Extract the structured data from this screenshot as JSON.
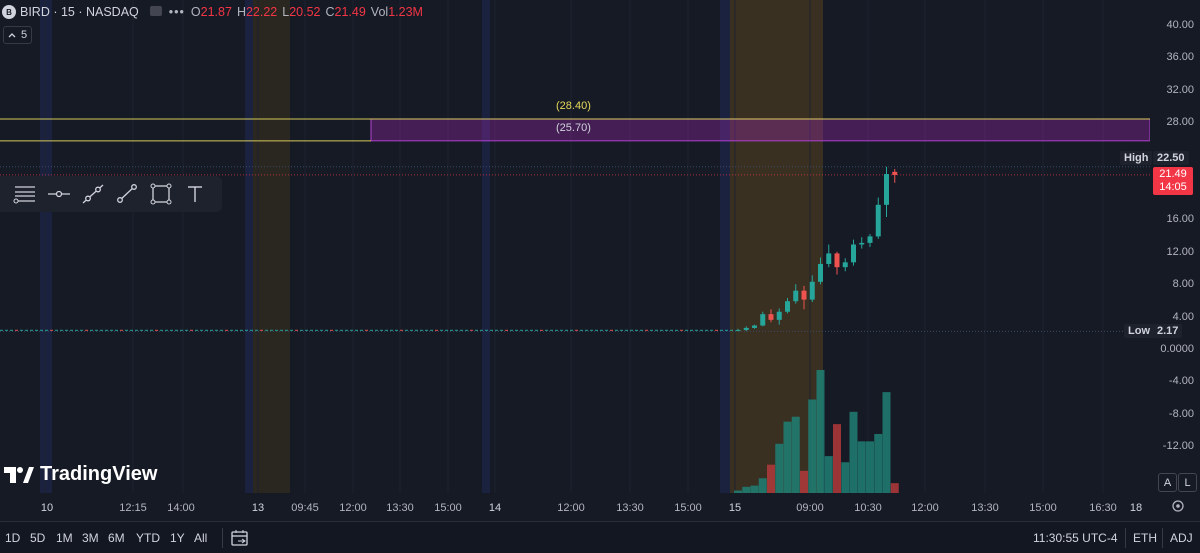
{
  "legend": {
    "logo_letter": "B",
    "symbol": "BIRD · 15 · NASDAQ",
    "o_key": "O",
    "o_val": "21.87",
    "h_key": "H",
    "h_val": "22.22",
    "l_key": "L",
    "l_val": "20.52",
    "c_key": "C",
    "c_val": "21.49",
    "vol_key": "Vol",
    "vol_val": "1.23M",
    "indicator_count": "5"
  },
  "annotations": {
    "zone_top_label": "(28.40)",
    "zone_mid_label": "(25.70)",
    "high_label": "High",
    "high_value": "22.50",
    "last_price": "21.49",
    "countdown": "14:05",
    "low_label": "Low",
    "low_value": "2.17"
  },
  "price_axis": [
    "40.00",
    "36.00",
    "32.00",
    "28.00",
    "16.00",
    "12.00",
    "8.00",
    "4.00",
    "0.0000",
    "-4.00",
    "-8.00",
    "-12.00"
  ],
  "time_axis": [
    {
      "label": "10",
      "day": true
    },
    {
      "label": "12:15",
      "day": false
    },
    {
      "label": "14:00",
      "day": false
    },
    {
      "label": "13",
      "day": true
    },
    {
      "label": "09:45",
      "day": false
    },
    {
      "label": "12:00",
      "day": false
    },
    {
      "label": "13:30",
      "day": false
    },
    {
      "label": "15:00",
      "day": false
    },
    {
      "label": "14",
      "day": true
    },
    {
      "label": "12:00",
      "day": false
    },
    {
      "label": "13:30",
      "day": false
    },
    {
      "label": "15:00",
      "day": false
    },
    {
      "label": "15",
      "day": true
    },
    {
      "label": "09:00",
      "day": false
    },
    {
      "label": "10:30",
      "day": false
    },
    {
      "label": "12:00",
      "day": false
    },
    {
      "label": "13:30",
      "day": false
    },
    {
      "label": "15:00",
      "day": false
    },
    {
      "label": "16:30",
      "day": false
    },
    {
      "label": "18",
      "day": true
    }
  ],
  "timeframes": [
    "1D",
    "5D",
    "1M",
    "3M",
    "6M",
    "YTD",
    "1Y",
    "All"
  ],
  "bottom_right": {
    "clock": "11:30:55 UTC-4",
    "session": "ETH",
    "adj": "ADJ"
  },
  "watermark": "TradingView",
  "corner_buttons": {
    "auto": "A",
    "log": "L"
  },
  "tools": [
    "horizontal-ray-tool-icon",
    "horizontal-line-tool-icon",
    "trend-line-tool-icon",
    "arrow-line-tool-icon",
    "rectangle-tool-icon",
    "text-tool-icon"
  ],
  "colors": {
    "up": "#26a69a",
    "down": "#ef5350",
    "zone": "#9c27b0",
    "accent": "#2962ff"
  },
  "chart_data": {
    "type": "candlestick",
    "candles": [
      {
        "o": 2.3,
        "h": 2.5,
        "l": 2.2,
        "c": 2.35
      },
      {
        "o": 2.35,
        "h": 2.8,
        "l": 2.2,
        "c": 2.6
      },
      {
        "o": 2.6,
        "h": 3.0,
        "l": 2.5,
        "c": 2.9
      },
      {
        "o": 2.9,
        "h": 4.6,
        "l": 2.8,
        "c": 4.3
      },
      {
        "o": 4.3,
        "h": 4.9,
        "l": 3.3,
        "c": 3.6
      },
      {
        "o": 3.6,
        "h": 5.0,
        "l": 3.0,
        "c": 4.6
      },
      {
        "o": 4.6,
        "h": 6.3,
        "l": 4.4,
        "c": 5.9
      },
      {
        "o": 5.9,
        "h": 8.0,
        "l": 5.6,
        "c": 7.2
      },
      {
        "o": 7.2,
        "h": 7.8,
        "l": 4.9,
        "c": 6.1
      },
      {
        "o": 6.1,
        "h": 9.1,
        "l": 5.8,
        "c": 8.3
      },
      {
        "o": 8.3,
        "h": 11.3,
        "l": 8.0,
        "c": 10.5
      },
      {
        "o": 10.5,
        "h": 12.9,
        "l": 10.1,
        "c": 11.8
      },
      {
        "o": 11.8,
        "h": 12.0,
        "l": 9.2,
        "c": 10.1
      },
      {
        "o": 10.1,
        "h": 11.2,
        "l": 9.6,
        "c": 10.7
      },
      {
        "o": 10.7,
        "h": 13.5,
        "l": 10.3,
        "c": 12.9
      },
      {
        "o": 12.9,
        "h": 13.8,
        "l": 12.4,
        "c": 13.1
      },
      {
        "o": 13.1,
        "h": 14.2,
        "l": 12.6,
        "c": 13.9
      },
      {
        "o": 13.9,
        "h": 18.7,
        "l": 13.6,
        "c": 17.8
      },
      {
        "o": 17.8,
        "h": 22.5,
        "l": 16.3,
        "c": 21.6
      },
      {
        "o": 21.87,
        "h": 22.22,
        "l": 20.52,
        "c": 21.49
      }
    ],
    "volume_relative": [
      0.02,
      0.05,
      0.06,
      0.12,
      0.23,
      0.4,
      0.58,
      0.62,
      0.18,
      0.76,
      1.0,
      0.3,
      0.56,
      0.25,
      0.66,
      0.42,
      0.42,
      0.48,
      0.82,
      0.08
    ],
    "levels": {
      "zone_top": 28.4,
      "zone_bottom": 25.7,
      "high": 22.5,
      "last": 21.49,
      "low": 2.17
    }
  }
}
